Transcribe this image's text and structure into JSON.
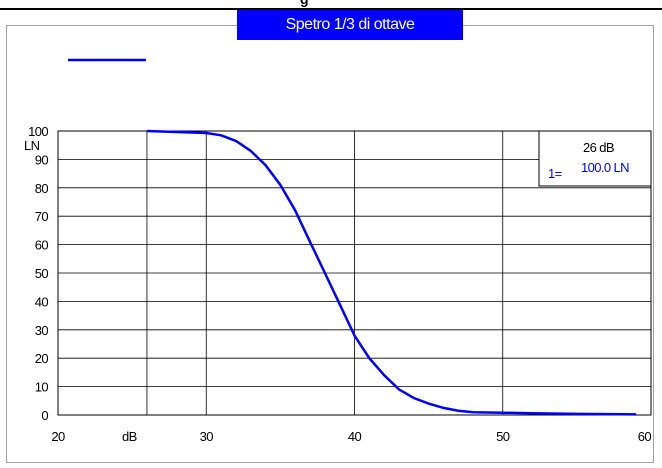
{
  "header": {
    "top_text": "g",
    "title": "Spetro 1/3 di ottave"
  },
  "colors": {
    "series": "#0000ff",
    "banner": "#0000ff",
    "grid": "#000000"
  },
  "info_box": {
    "level": "26 dB",
    "index": "1=",
    "value": "100.0 LN"
  },
  "chart_data": {
    "type": "line",
    "title": "Spetro 1/3 di ottave",
    "xlabel": "dB",
    "ylabel": "LN",
    "xlim": [
      20,
      60
    ],
    "ylim": [
      0,
      100
    ],
    "xticks": [
      20,
      30,
      40,
      50,
      60
    ],
    "yticks": [
      0,
      10,
      20,
      30,
      40,
      50,
      60,
      70,
      80,
      90,
      100
    ],
    "grid": true,
    "legend": "top-left",
    "series": [
      {
        "x": [
          26,
          30,
          31,
          32,
          33,
          34,
          35,
          36,
          37,
          38,
          39,
          40,
          41,
          42,
          43,
          44,
          45,
          46,
          47,
          48,
          50,
          52,
          55,
          59
        ],
        "y": [
          100,
          99.3,
          98.5,
          96.5,
          93,
          88,
          81,
          72,
          61,
          50,
          39,
          28,
          20,
          14,
          9,
          6,
          4,
          2.5,
          1.5,
          1,
          0.8,
          0.6,
          0.4,
          0.2
        ]
      }
    ]
  }
}
